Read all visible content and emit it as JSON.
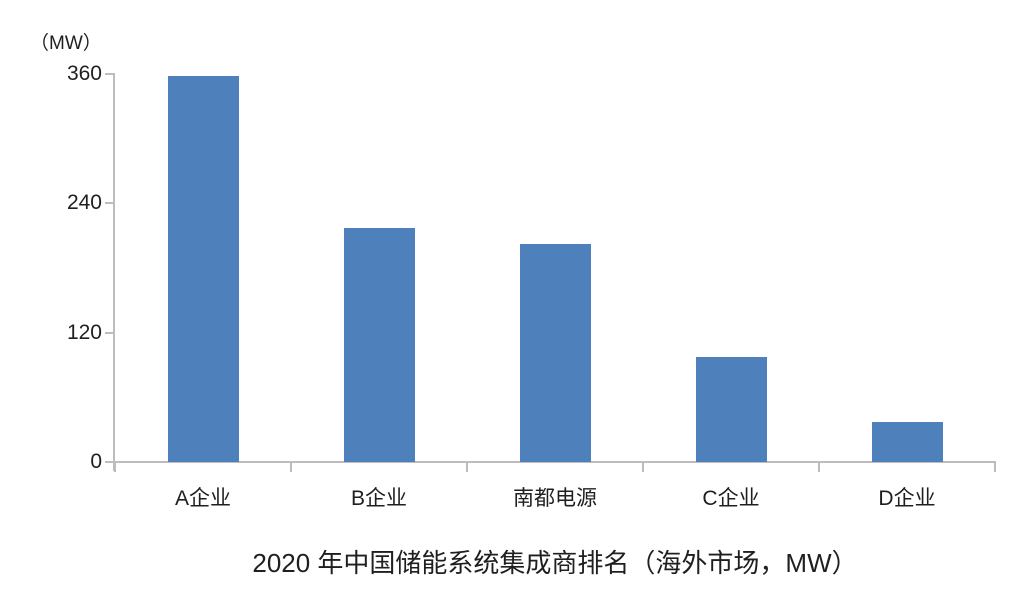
{
  "colors": {
    "bar": "#4E81BC",
    "axis": "#BDBDBD",
    "text": "#1F1F1F",
    "background": "#FFFFFF"
  },
  "chart_data": {
    "type": "bar",
    "categories": [
      "A企业",
      "B企业",
      "南都电源",
      "C企业",
      "D企业"
    ],
    "values": [
      358,
      217,
      202,
      97,
      37
    ],
    "title": "2020 年中国储能系统集成商排名（海外市场，MW）",
    "xlabel": "",
    "ylabel": "（MW）",
    "ylim": [
      0,
      360
    ],
    "yticks": [
      0,
      120,
      240,
      360
    ],
    "grid": false,
    "legend": false,
    "bar_color": "#4E81BC"
  }
}
